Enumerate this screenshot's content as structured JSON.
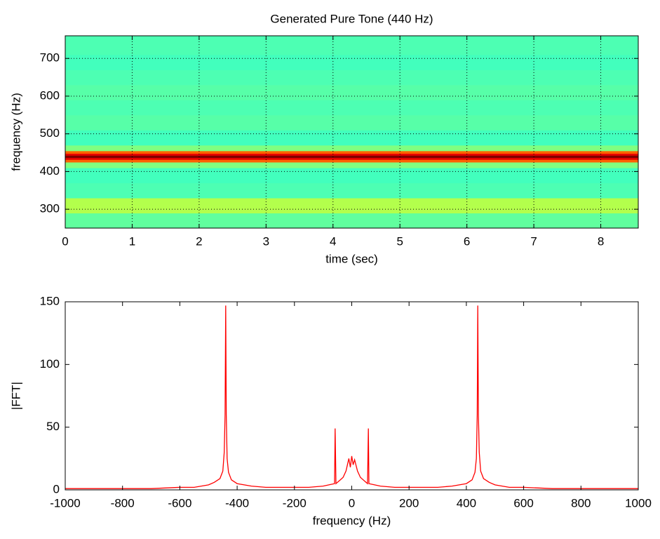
{
  "chart_data": [
    {
      "type": "heatmap",
      "title": "Generated Pure Tone (440 Hz)",
      "xlabel": "time (sec)",
      "ylabel": "frequency (Hz)",
      "xlim": [
        0,
        8.56
      ],
      "ylim": [
        250,
        760
      ],
      "xticks": [
        0,
        1,
        2,
        3,
        4,
        5,
        6,
        7,
        8
      ],
      "yticks": [
        300,
        400,
        500,
        600,
        700
      ],
      "grid": true,
      "ybins": [
        250,
        290,
        330,
        370,
        410,
        425,
        432,
        437,
        443,
        448,
        455,
        470,
        510,
        550,
        590,
        630,
        670,
        710,
        760
      ],
      "values": [
        0.47,
        0.55,
        0.45,
        0.44,
        0.5,
        0.78,
        0.9,
        1.0,
        0.9,
        0.78,
        0.5,
        0.44,
        0.46,
        0.45,
        0.46,
        0.45,
        0.44,
        0.45
      ]
    },
    {
      "type": "line",
      "xlabel": "frequency (Hz)",
      "ylabel": "|FFT|",
      "xlim": [
        -1000,
        1000
      ],
      "ylim": [
        0,
        150
      ],
      "xticks": [
        -1000,
        -800,
        -600,
        -400,
        -200,
        0,
        200,
        400,
        600,
        800,
        1000
      ],
      "yticks": [
        0,
        50,
        100,
        150
      ],
      "grid": false,
      "x": [
        -1000,
        -900,
        -800,
        -700,
        -600,
        -550,
        -500,
        -480,
        -460,
        -450,
        -445,
        -442,
        -440,
        -438,
        -435,
        -430,
        -420,
        -400,
        -350,
        -300,
        -250,
        -200,
        -150,
        -100,
        -80,
        -60,
        -58,
        -55,
        -50,
        -40,
        -30,
        -20,
        -10,
        -5,
        0,
        5,
        10,
        20,
        30,
        40,
        50,
        55,
        58,
        60,
        80,
        100,
        150,
        200,
        250,
        300,
        350,
        400,
        420,
        430,
        435,
        438,
        440,
        442,
        445,
        450,
        460,
        480,
        500,
        550,
        600,
        700,
        800,
        900,
        1000
      ],
      "series": [
        {
          "color": "#ff0000",
          "values": [
            1,
            1,
            1,
            1,
            2,
            2,
            4,
            6,
            9,
            15,
            30,
            60,
            147,
            60,
            25,
            14,
            8,
            5,
            3,
            2,
            2,
            2,
            2,
            3,
            4,
            5,
            49,
            5,
            6,
            8,
            10,
            15,
            25,
            18,
            27,
            20,
            24,
            15,
            10,
            8,
            6,
            5,
            49,
            5,
            4,
            3,
            2,
            2,
            2,
            2,
            3,
            5,
            8,
            14,
            25,
            60,
            147,
            60,
            30,
            15,
            9,
            6,
            4,
            2,
            2,
            1,
            1,
            1,
            1
          ]
        }
      ]
    }
  ]
}
